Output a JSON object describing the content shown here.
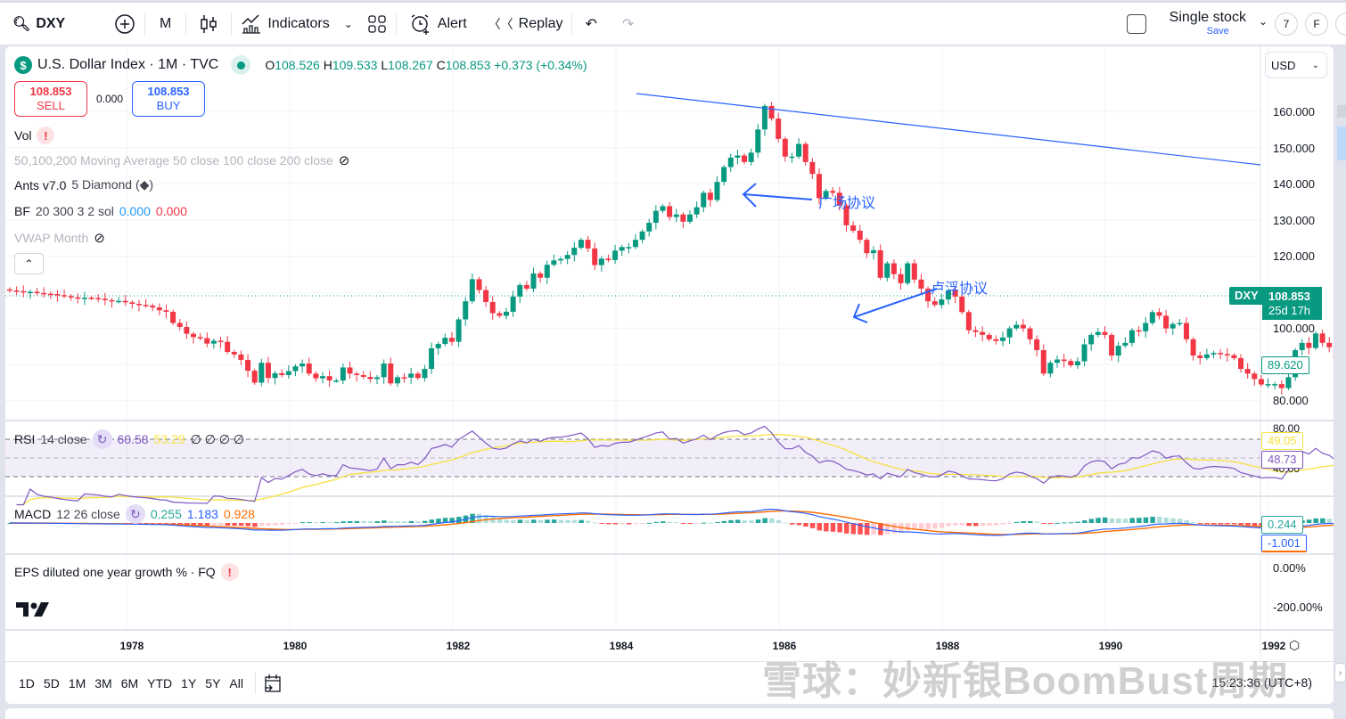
{
  "toolbar": {
    "symbol": "DXY",
    "interval": "M",
    "indicators_label": "Indicators",
    "alert_label": "Alert",
    "replay_label": "Replay",
    "layout_name": "Single stock",
    "layout_save": "Save",
    "circle_btn_1": "7",
    "circle_btn_2": "F"
  },
  "legend": {
    "title": "U.S. Dollar Index · 1M · TVC",
    "open_label": "O",
    "open": "108.526",
    "high_label": "H",
    "high": "109.533",
    "low_label": "L",
    "low": "108.267",
    "close_label": "C",
    "close": "108.853",
    "change": "+0.373 (+0.34%)",
    "sell_price": "108.853",
    "sell_label": "SELL",
    "spread": "0.000",
    "buy_price": "108.853",
    "buy_label": "BUY",
    "indicators": [
      {
        "name": "Vol"
      },
      {
        "name": "50,100,200 Moving Average 50 close 100 close 200 close"
      },
      {
        "name": "Ants v7.0",
        "args": "5 Diamond (◆)"
      },
      {
        "name": "BF",
        "args": "20 300 3 2 sol",
        "v1": "0.000",
        "v2": "0.000"
      },
      {
        "name": "VWAP Month"
      }
    ]
  },
  "price_axis": {
    "currency": "USD",
    "ticks": [
      "160.000",
      "150.000",
      "140.000",
      "130.000",
      "120.000",
      "100.000",
      "80.000"
    ],
    "last_price": "108.853",
    "countdown": "25d 17h",
    "symbol_tag": "DXY",
    "crosshair_price": "89.620"
  },
  "annotations": {
    "plaza": "广场协议",
    "louvre": "卢浮协议"
  },
  "rsi": {
    "label": "RSI",
    "args": "14 close",
    "value": "60.58",
    "ma": "53.29",
    "extra": "∅ ∅ ∅ ∅",
    "axis_top": "80.00",
    "axis_bottom": "40.00",
    "tag_ma": "49.05",
    "tag_rsi": "48.73"
  },
  "macd": {
    "label": "MACD",
    "args": "12 26 close",
    "hist": "0.255",
    "macd": "1.183",
    "signal": "0.928",
    "tag_hist": "0.244",
    "tag_macd": "-1.001"
  },
  "eps": {
    "label": "EPS diluted one year growth % · FQ",
    "ticks": [
      "0.00%",
      "-200.00%"
    ]
  },
  "time_axis": {
    "labels": [
      "1978",
      "1980",
      "1982",
      "1984",
      "1986",
      "1988",
      "1990",
      "1992"
    ]
  },
  "bottom_bar": {
    "ranges": [
      "1D",
      "5D",
      "1M",
      "3M",
      "6M",
      "YTD",
      "1Y",
      "5Y",
      "All"
    ],
    "clock": "15:23:36 (UTC+8)"
  },
  "watermark": "雪球：妙新银BoomBust周期",
  "colors": {
    "up": "#089981",
    "down": "#f23645",
    "trendline": "#2962ff",
    "rsi": "#7e57c2",
    "rsi_ma": "#f7e13e",
    "macd": "#2962ff",
    "signal": "#ff6d00"
  },
  "chart_data": {
    "type": "candlestick",
    "title": "U.S. Dollar Index · 1M · TVC",
    "x_start": "1976-01",
    "interval": "1M",
    "ylim": [
      80,
      165
    ],
    "closes": [
      110.5,
      110.3,
      110,
      110.1,
      109.8,
      109.6,
      109.5,
      109.2,
      108.9,
      108.6,
      108.3,
      108.5,
      108.4,
      108.2,
      107.8,
      107.5,
      107.6,
      107.2,
      106.8,
      106.5,
      106.3,
      105.8,
      105,
      104.6,
      101.5,
      100.4,
      98.5,
      97.6,
      97.3,
      95.8,
      96.6,
      96.3,
      93.5,
      92.8,
      91.3,
      88.3,
      85,
      90.5,
      86.3,
      87.6,
      87.1,
      88.2,
      89.5,
      90.3,
      87.5,
      86.2,
      86.8,
      85.6,
      85.6,
      89.2,
      87.5,
      87.1,
      86.6,
      86,
      86.5,
      90.3,
      84.8,
      86.5,
      86.4,
      87.5,
      86.3,
      88.8,
      94.5,
      95.7,
      97.4,
      96.3,
      102.5,
      107.5,
      113.6,
      110.6,
      107.3,
      104.2,
      103.5,
      104.6,
      108.8,
      112,
      111,
      115.2,
      114,
      117.6,
      118.8,
      119.2,
      120.3,
      122.3,
      124.5,
      122.1,
      117.5,
      119.3,
      118.9,
      121.5,
      122.5,
      122.5,
      124.5,
      126.8,
      129.2,
      132.5,
      133.8,
      130.8,
      131.5,
      129.5,
      131.5,
      133.5,
      137.5,
      135.5,
      140.5,
      144.6,
      147.2,
      147.8,
      146,
      148.6,
      155,
      161.5,
      158,
      152.4,
      147.5,
      147.5,
      151,
      146,
      142.7,
      136,
      138,
      137.5,
      134,
      128.5,
      127,
      124.5,
      120.8,
      121.6,
      114,
      118,
      115,
      112.5,
      118,
      113.5,
      111,
      107.5,
      106.5,
      108,
      110.5,
      108.8,
      104.5,
      99.5,
      99,
      98.2,
      97,
      96.5,
      97.5,
      100,
      101,
      100,
      97,
      94,
      87.5,
      90.5,
      91.4,
      91,
      89.8,
      90.9,
      95.6,
      98.2,
      99,
      98.2,
      92.5,
      95.2,
      96,
      99.5,
      99.2,
      101.5,
      104.5,
      103.5,
      100,
      101.2,
      101.5,
      97,
      92.5,
      91.8,
      92.8,
      93.2,
      92.9,
      92.6,
      91.8,
      88.8,
      87.5,
      86,
      84.5,
      84.6,
      84.6,
      83.5,
      86.5,
      94,
      96,
      94.6,
      98.6,
      96,
      94.8,
      91.5,
      91,
      88,
      86.5,
      90.5,
      91.2,
      91.5,
      91.5
    ]
  }
}
